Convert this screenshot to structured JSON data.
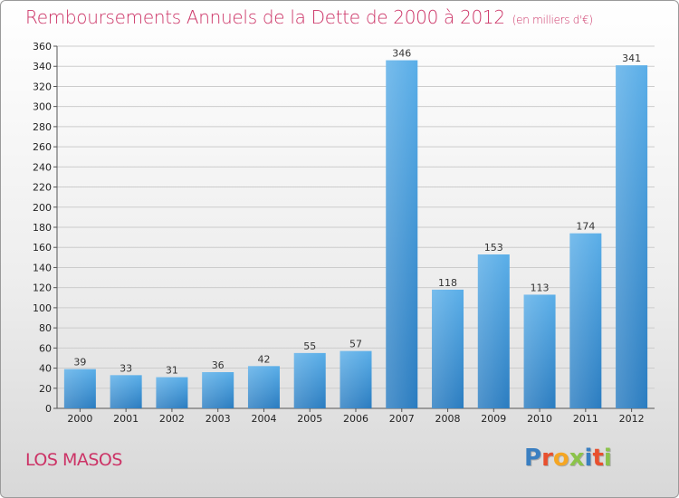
{
  "header": {
    "title": "Remboursements Annuels de la Dette de 2000 à 2012",
    "unit": "(en milliers d'€)"
  },
  "footer": {
    "commune": "LOS MASOS",
    "logo_letters": [
      "P",
      "r",
      "o",
      "x",
      "i",
      "t",
      "i"
    ]
  },
  "colors": {
    "title": "#cc3366",
    "bar": "#4da3e0",
    "logo": [
      "#3a7fc1",
      "#e8502e",
      "#f5a623",
      "#8bc34a",
      "#3a7fc1",
      "#e8502e",
      "#8bc34a"
    ]
  },
  "chart_data": {
    "type": "bar",
    "title": "Remboursements Annuels de la Dette de 2000 à 2012",
    "subtitle": "(en milliers d'€)",
    "xlabel": "",
    "ylabel": "",
    "categories": [
      "2000",
      "2001",
      "2002",
      "2003",
      "2004",
      "2005",
      "2006",
      "2007",
      "2008",
      "2009",
      "2010",
      "2011",
      "2012"
    ],
    "values": [
      39,
      33,
      31,
      36,
      42,
      55,
      57,
      346,
      118,
      153,
      113,
      174,
      341
    ],
    "ylim": [
      0,
      360
    ],
    "yticks": [
      0,
      20,
      40,
      60,
      80,
      100,
      120,
      140,
      160,
      180,
      200,
      220,
      240,
      260,
      280,
      300,
      320,
      340,
      360
    ],
    "grid": true,
    "legend": "none"
  }
}
